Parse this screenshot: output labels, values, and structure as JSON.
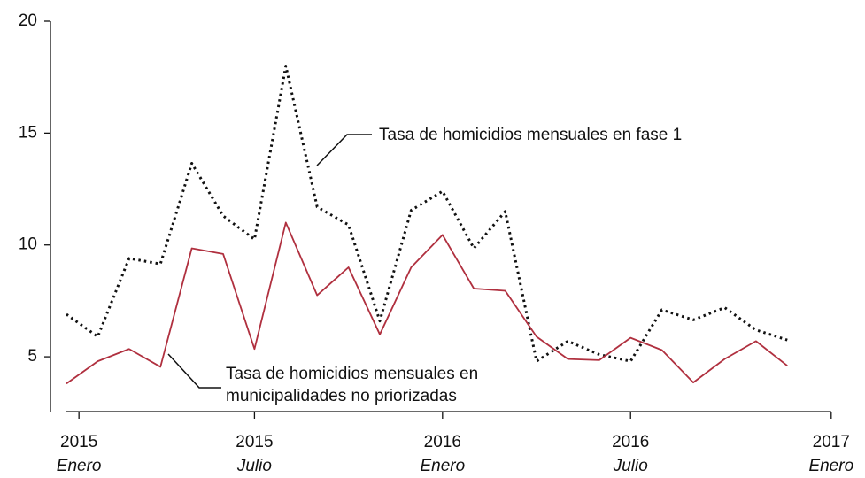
{
  "chart_data": {
    "type": "line",
    "x": [
      0,
      1,
      2,
      3,
      4,
      5,
      6,
      7,
      8,
      9,
      10,
      11,
      12,
      13,
      14,
      15,
      16,
      17,
      18,
      19,
      20,
      21,
      22,
      23
    ],
    "xlim": [
      0,
      24.4
    ],
    "xticks": [
      {
        "value": 0.4,
        "label": "2015"
      },
      {
        "value": 6,
        "label": "2015"
      },
      {
        "value": 12,
        "label": "2016"
      },
      {
        "value": 18,
        "label": "2016"
      },
      {
        "value": 24.4,
        "label": "2017"
      }
    ],
    "xtick_sublabels": [
      "Enero",
      "Julio",
      "Enero",
      "Julio",
      "Enero"
    ],
    "ylim": [
      2.55,
      20
    ],
    "yticks": [
      5,
      10,
      15,
      20
    ],
    "series": [
      {
        "color": "#111111",
        "dash": "dotted",
        "values": [
          6.9,
          5.9,
          9.4,
          9.15,
          13.65,
          11.3,
          10.25,
          18.0,
          11.7,
          10.9,
          6.6,
          11.55,
          12.4,
          9.85,
          11.5,
          4.8,
          5.7,
          5.1,
          4.8,
          7.1,
          6.65,
          7.2,
          6.2,
          5.75
        ]
      },
      {
        "color": "#b0303f",
        "dash": "solid",
        "values": [
          3.8,
          4.8,
          5.35,
          4.55,
          9.85,
          9.6,
          5.35,
          11.0,
          7.75,
          9.0,
          6.0,
          9.0,
          10.45,
          8.05,
          7.95,
          5.9,
          4.9,
          4.85,
          5.85,
          5.3,
          3.85,
          4.9,
          5.7,
          4.6
        ]
      }
    ],
    "annotations": [
      {
        "lines": [
          "Tasa de homicidios mensuales en fase 1"
        ]
      },
      {
        "lines": [
          "Tasa de homicidios mensuales en",
          "municipalidades no priorizadas"
        ]
      }
    ]
  }
}
